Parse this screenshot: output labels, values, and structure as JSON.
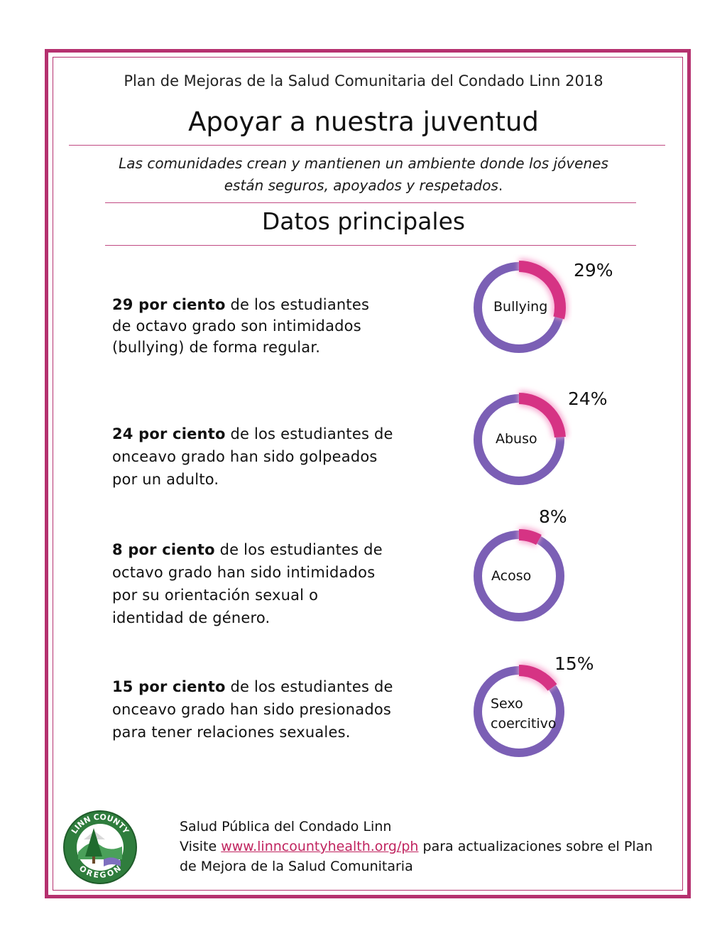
{
  "header": {
    "subtitle": "Plan de Mejoras de la Salud Comunitaria del Condado Linn 2018",
    "title": "Apoyar a nuestra juventud",
    "tagline_line1": "Las comunidades crean y mantienen un ambiente donde los jóvenes",
    "tagline_line2": "están seguros, apoyados y respetados",
    "tagline_end": "."
  },
  "section_title": "Datos principales",
  "facts": [
    {
      "bold": "29 por ciento",
      "lines": [
        " de los estudiantes",
        "de octavo grado son intimidados",
        "(bullying) de forma regular."
      ],
      "percent_value": 29,
      "percent_label": "29%",
      "donut_label": [
        "Bullying"
      ]
    },
    {
      "bold": "24 por ciento",
      "lines": [
        " de los estudiantes de",
        "onceavo grado han sido golpeados",
        "por un adulto."
      ],
      "percent_value": 24,
      "percent_label": "24%",
      "donut_label": [
        "Abuso"
      ]
    },
    {
      "bold": "8 por ciento",
      "lines": [
        " de los estudiantes de",
        "octavo grado han sido intimidados",
        "por su orientación sexual o",
        "identidad de género."
      ],
      "percent_value": 8,
      "percent_label": "8%",
      "donut_label": [
        "Acoso"
      ]
    },
    {
      "bold": "15 por ciento",
      "lines": [
        " de los estudiantes de",
        "onceavo grado han sido presionados",
        "para tener relaciones sexuales."
      ],
      "percent_value": 15,
      "percent_label": "15%",
      "donut_label": [
        "Sexo",
        "coercitivo"
      ]
    }
  ],
  "footer": {
    "line1": "Salud Pública del Condado Linn",
    "line2_prefix": "Visite ",
    "link_text": "www.linncountyhealth.org/ph",
    "line2_suffix": " para actualizaciones sobre el Plan",
    "line3": "de Mejora de la Salud Comunitaria"
  },
  "logo": {
    "text_top": "LINN COUNTY",
    "text_bottom": "OREGON"
  },
  "colors": {
    "frame": "#b5316f",
    "accent": "#d63384",
    "ring_base": "#7b5fb5",
    "glow": "#f7a8d0",
    "link": "#c0245f"
  }
}
